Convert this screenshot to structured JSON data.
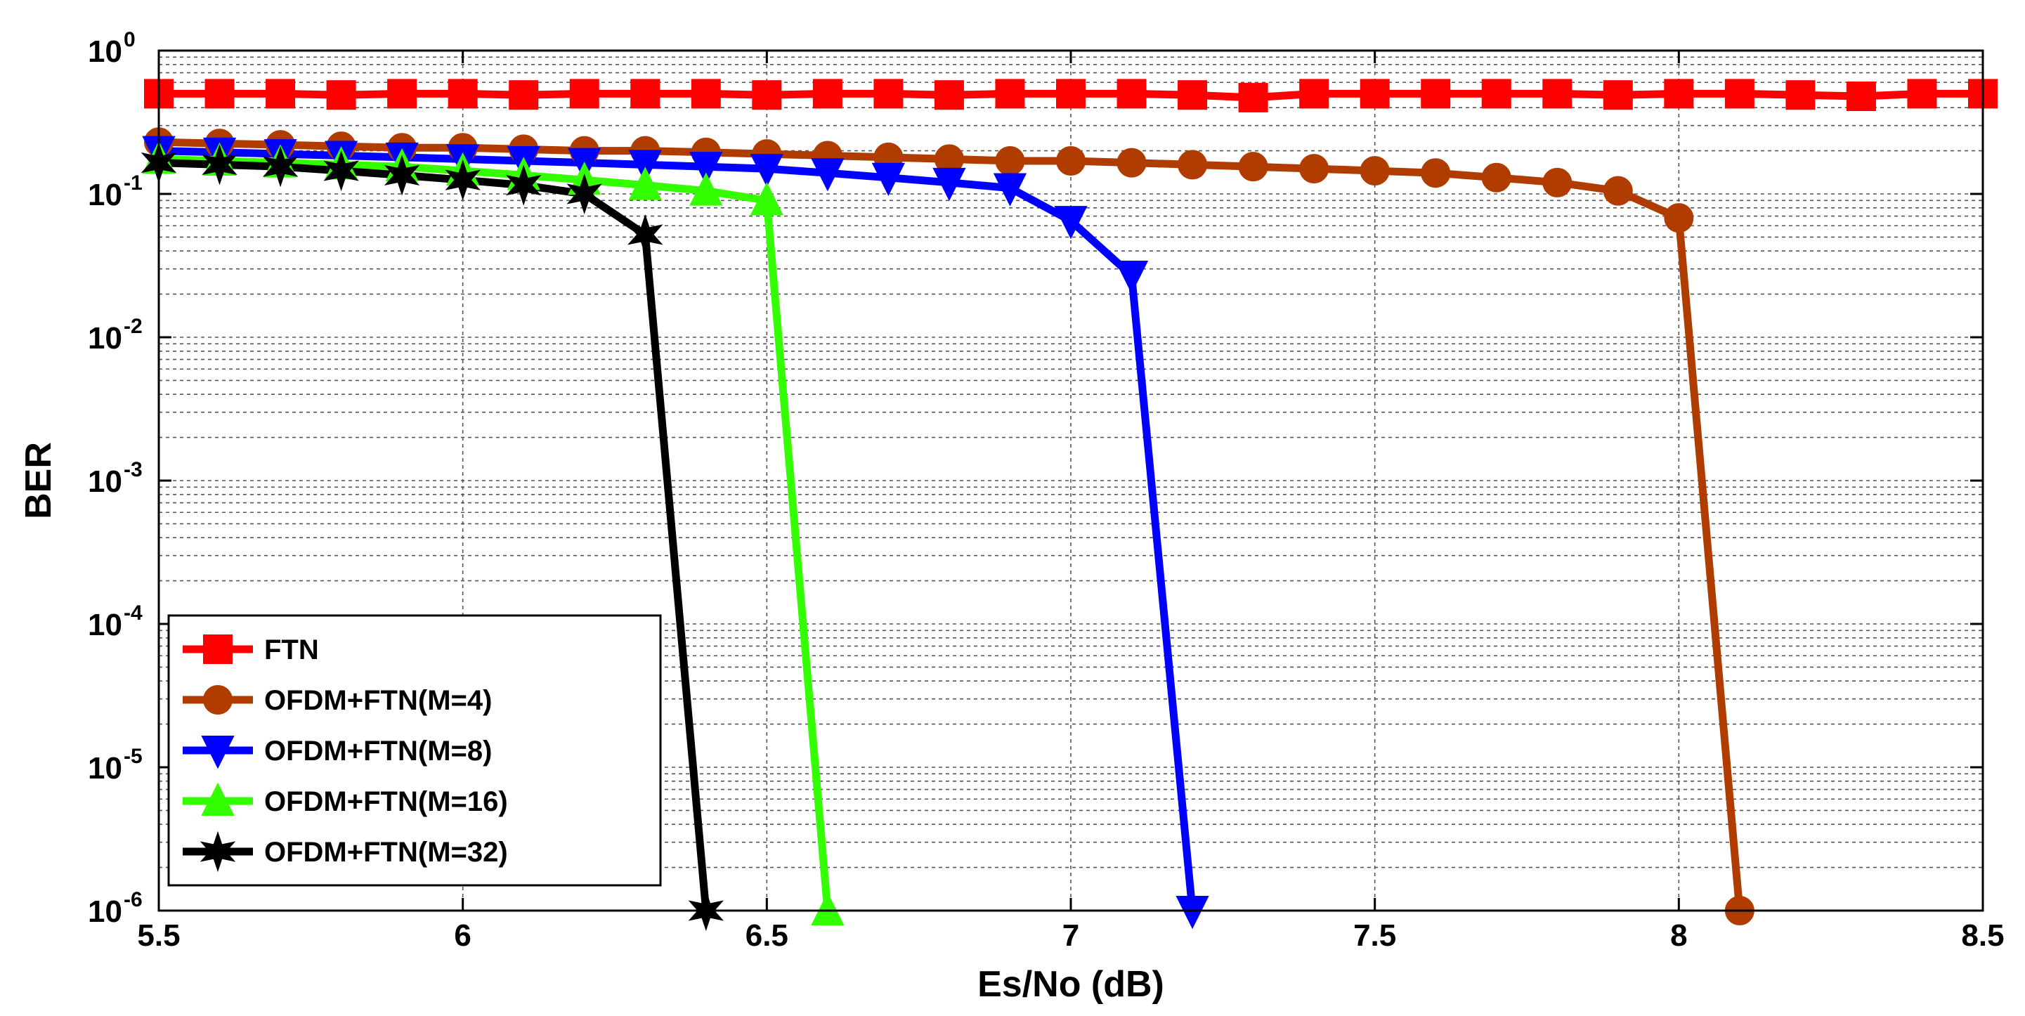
{
  "chart_data": {
    "type": "line",
    "title": "",
    "xlabel": "Es/No (dB)",
    "ylabel": "BER",
    "yscale": "log",
    "xlim": [
      5.5,
      8.5
    ],
    "ylim": [
      1e-06,
      1
    ],
    "grid": true,
    "legend_position": "bottom-left",
    "x_ticks": [
      {
        "value": 5.5,
        "label": "5.5"
      },
      {
        "value": 6,
        "label": "6"
      },
      {
        "value": 6.5,
        "label": "6.5"
      },
      {
        "value": 7,
        "label": "7"
      },
      {
        "value": 7.5,
        "label": "7.5"
      },
      {
        "value": 8,
        "label": "8"
      },
      {
        "value": 8.5,
        "label": "8.5"
      }
    ],
    "y_ticks": [
      {
        "value": 1,
        "base": "10",
        "exp": "0"
      },
      {
        "value": 0.1,
        "base": "10",
        "exp": "-1"
      },
      {
        "value": 0.01,
        "base": "10",
        "exp": "-2"
      },
      {
        "value": 0.001,
        "base": "10",
        "exp": "-3"
      },
      {
        "value": 0.0001,
        "base": "10",
        "exp": "-4"
      },
      {
        "value": 1e-05,
        "base": "10",
        "exp": "-5"
      },
      {
        "value": 1e-06,
        "base": "10",
        "exp": "-6"
      }
    ],
    "series": [
      {
        "name": "FTN",
        "color": "#ff0000",
        "marker": "square",
        "x": [
          5.5,
          5.6,
          5.7,
          5.8,
          5.9,
          6.0,
          6.1,
          6.2,
          6.3,
          6.4,
          6.5,
          6.6,
          6.7,
          6.8,
          6.9,
          7.0,
          7.1,
          7.2,
          7.3,
          7.4,
          7.5,
          7.6,
          7.7,
          7.8,
          7.9,
          8.0,
          8.1,
          8.2,
          8.3,
          8.4,
          8.5
        ],
        "y": [
          0.5,
          0.5,
          0.5,
          0.49,
          0.5,
          0.5,
          0.49,
          0.5,
          0.5,
          0.5,
          0.49,
          0.5,
          0.5,
          0.49,
          0.5,
          0.5,
          0.5,
          0.49,
          0.47,
          0.5,
          0.5,
          0.5,
          0.5,
          0.5,
          0.49,
          0.5,
          0.5,
          0.49,
          0.48,
          0.5,
          0.5
        ]
      },
      {
        "name": "OFDM+FTN(M=4)",
        "color": "#b03c00",
        "marker": "circle",
        "x": [
          5.5,
          5.6,
          5.7,
          5.8,
          5.9,
          6.0,
          6.1,
          6.2,
          6.3,
          6.4,
          6.5,
          6.6,
          6.7,
          6.8,
          6.9,
          7.0,
          7.1,
          7.2,
          7.3,
          7.4,
          7.5,
          7.6,
          7.7,
          7.8,
          7.9,
          8.0,
          8.1
        ],
        "y": [
          0.23,
          0.225,
          0.22,
          0.215,
          0.21,
          0.21,
          0.205,
          0.2,
          0.2,
          0.195,
          0.19,
          0.185,
          0.18,
          0.175,
          0.17,
          0.17,
          0.165,
          0.16,
          0.155,
          0.15,
          0.145,
          0.14,
          0.13,
          0.12,
          0.105,
          0.068,
          1e-06
        ]
      },
      {
        "name": "OFDM+FTN(M=8)",
        "color": "#0000ff",
        "marker": "triangle-down",
        "x": [
          5.5,
          5.6,
          5.7,
          5.8,
          5.9,
          6.0,
          6.1,
          6.2,
          6.3,
          6.4,
          6.5,
          6.6,
          6.7,
          6.8,
          6.9,
          7.0,
          7.1,
          7.2
        ],
        "y": [
          0.2,
          0.195,
          0.19,
          0.185,
          0.18,
          0.175,
          0.17,
          0.165,
          0.16,
          0.155,
          0.15,
          0.14,
          0.13,
          0.12,
          0.11,
          0.065,
          0.027,
          1e-06
        ]
      },
      {
        "name": "OFDM+FTN(M=16)",
        "color": "#33ff00",
        "marker": "triangle-up",
        "x": [
          5.5,
          5.6,
          5.7,
          5.8,
          5.9,
          6.0,
          6.1,
          6.2,
          6.3,
          6.4,
          6.5,
          6.6
        ],
        "y": [
          0.175,
          0.17,
          0.165,
          0.16,
          0.155,
          0.145,
          0.135,
          0.125,
          0.115,
          0.105,
          0.09,
          1e-06
        ]
      },
      {
        "name": "OFDM+FTN(M=32)",
        "color": "#000000",
        "marker": "star",
        "x": [
          5.5,
          5.6,
          5.7,
          5.8,
          5.9,
          6.0,
          6.1,
          6.2,
          6.3,
          6.4
        ],
        "y": [
          0.165,
          0.16,
          0.155,
          0.145,
          0.135,
          0.125,
          0.115,
          0.1,
          0.052,
          1e-06
        ]
      }
    ]
  }
}
